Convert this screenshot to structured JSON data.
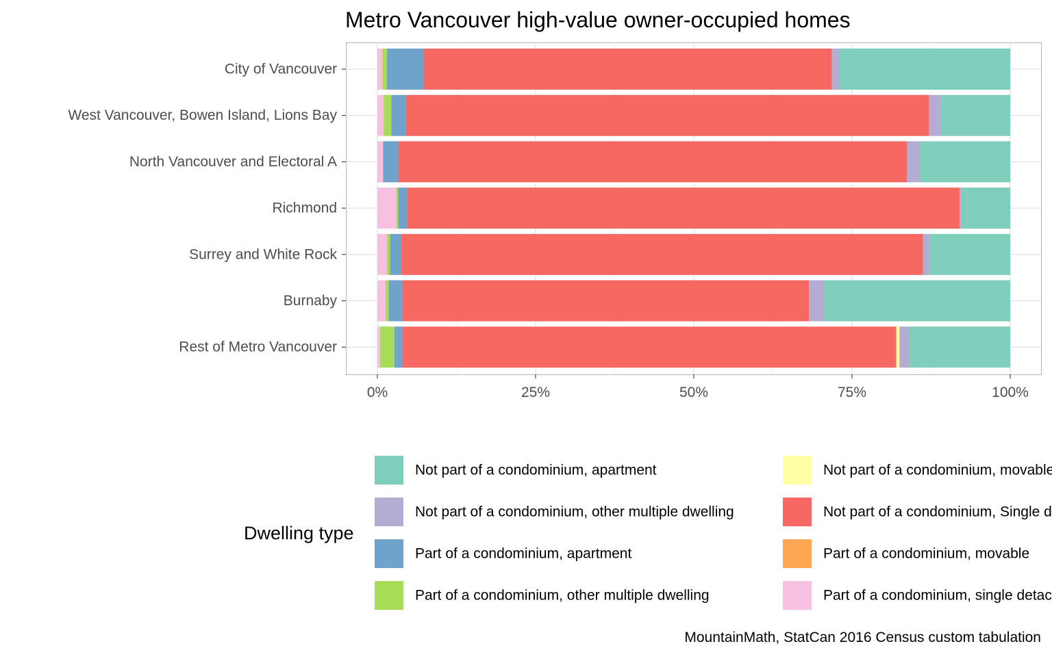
{
  "chart_data": {
    "type": "bar",
    "orientation": "horizontal",
    "stacked": "percent",
    "title": "Metro Vancouver high-value owner-occupied homes",
    "caption": "MountainMath, StatCan 2016 Census custom tabulation",
    "legend_title": "Dwelling type",
    "legend_position": "bottom",
    "xlim": [
      0,
      100
    ],
    "x_ticks": [
      0,
      25,
      50,
      75,
      100
    ],
    "x_tick_labels": [
      "0%",
      "25%",
      "50%",
      "75%",
      "100%"
    ],
    "grid": true,
    "categories": [
      "City of Vancouver",
      "West Vancouver, Bowen Island, Lions Bay",
      "North Vancouver and Electoral A",
      "Richmond",
      "Surrey and White Rock",
      "Burnaby",
      "Rest of Metro Vancouver"
    ],
    "stack_order": [
      "Part of a condominium, single detached",
      "Part of a condominium, movable",
      "Part of a condominium, other multiple dwelling",
      "Part of a condominium, apartment",
      "Not part of a condominium, Single detached",
      "Not part of a condominium, movable",
      "Not part of a condominium, other multiple dwelling",
      "Not part of a condominium, apartment"
    ],
    "series": [
      {
        "name": "Not part of a condominium, apartment",
        "color": "#7fcdbb",
        "values": [
          27.0,
          11.0,
          14.3,
          7.7,
          12.7,
          29.4,
          15.9
        ]
      },
      {
        "name": "Not part of a condominium, other multiple dwelling",
        "color": "#b3acd3",
        "values": [
          1.2,
          1.8,
          2.0,
          0.3,
          1.1,
          2.4,
          1.6
        ]
      },
      {
        "name": "Part of a condominium, apartment",
        "color": "#6fa3cc",
        "values": [
          5.8,
          2.3,
          2.4,
          1.4,
          1.7,
          2.2,
          1.2
        ]
      },
      {
        "name": "Part of a condominium, other multiple dwelling",
        "color": "#a7dc56",
        "values": [
          0.7,
          1.2,
          0.0,
          0.3,
          0.5,
          0.5,
          2.3
        ]
      },
      {
        "name": "Not part of a condominium, movable",
        "color": "#ffffa3",
        "values": [
          0.0,
          0.0,
          0.0,
          0.0,
          0.0,
          0.0,
          0.5
        ]
      },
      {
        "name": "Not part of a condominium, Single detached",
        "color": "#f66963",
        "values": [
          64.5,
          82.7,
          80.4,
          87.3,
          82.5,
          64.2,
          78.1
        ]
      },
      {
        "name": "Part of a condominium, movable",
        "color": "#fda654",
        "values": [
          0.0,
          0.0,
          0.0,
          0.0,
          0.0,
          0.0,
          0.0
        ]
      },
      {
        "name": "Part of a condominium, single detached",
        "color": "#f8c0e0",
        "values": [
          0.8,
          1.0,
          0.9,
          3.0,
          1.5,
          1.3,
          0.4
        ]
      }
    ]
  }
}
